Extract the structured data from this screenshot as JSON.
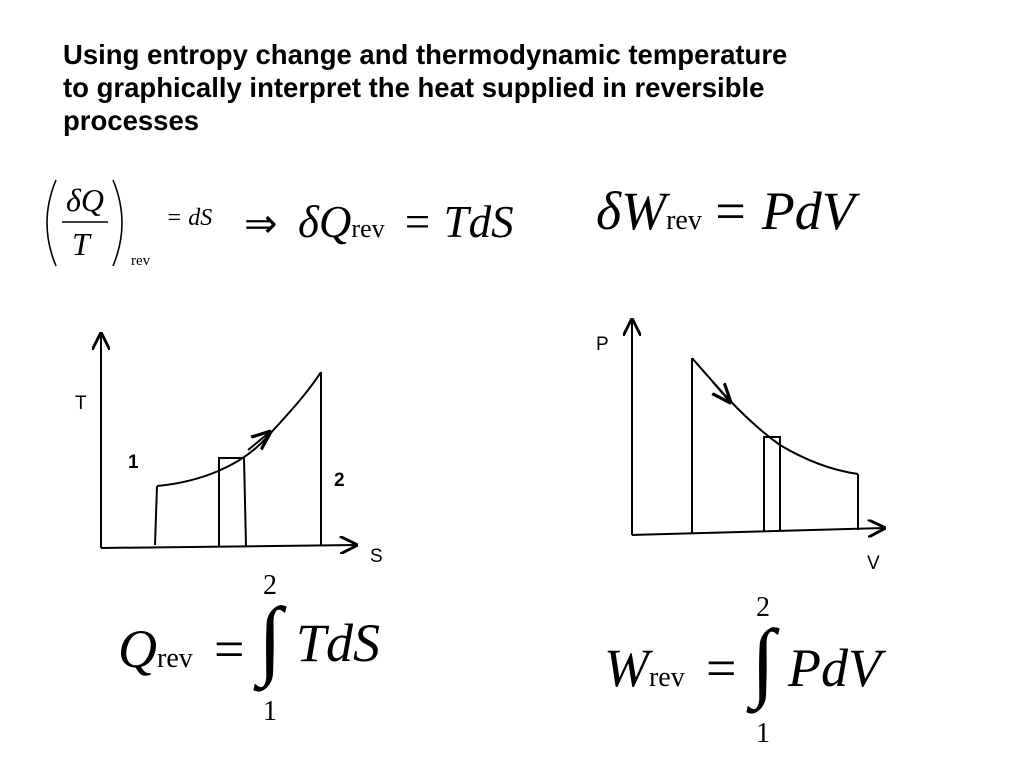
{
  "title": {
    "line1": "Using entropy change and thermodynamic temperature",
    "line2": "to graphically interpret the heat supplied in reversible",
    "line3": "processes"
  },
  "equations": {
    "heat_def": {
      "frac_num": "δQ",
      "frac_den": "T",
      "frac_sub": "rev",
      "equals": "= dS",
      "implies": "⇒",
      "lhs": "δQ",
      "lhs_sub": "rev",
      "rhs": "= TdS"
    },
    "work_def": {
      "lhs": "δW",
      "lhs_sub": "rev",
      "rhs": "= PdV"
    },
    "heat_integral": {
      "lhs": "Q",
      "lhs_sub": "rev",
      "equals": "=",
      "integral": "∫",
      "upper": "2",
      "lower": "1",
      "integrand": "TdS"
    },
    "work_integral": {
      "lhs": "W",
      "lhs_sub": "rev",
      "equals": "=",
      "integral": "∫",
      "upper": "2",
      "lower": "1",
      "integrand": "PdV"
    }
  },
  "ts_diagram": {
    "y_axis_label": "T",
    "x_axis_label": "S",
    "state_1": "1",
    "state_2": "2"
  },
  "pv_diagram": {
    "y_axis_label": "P",
    "x_axis_label": "V"
  }
}
